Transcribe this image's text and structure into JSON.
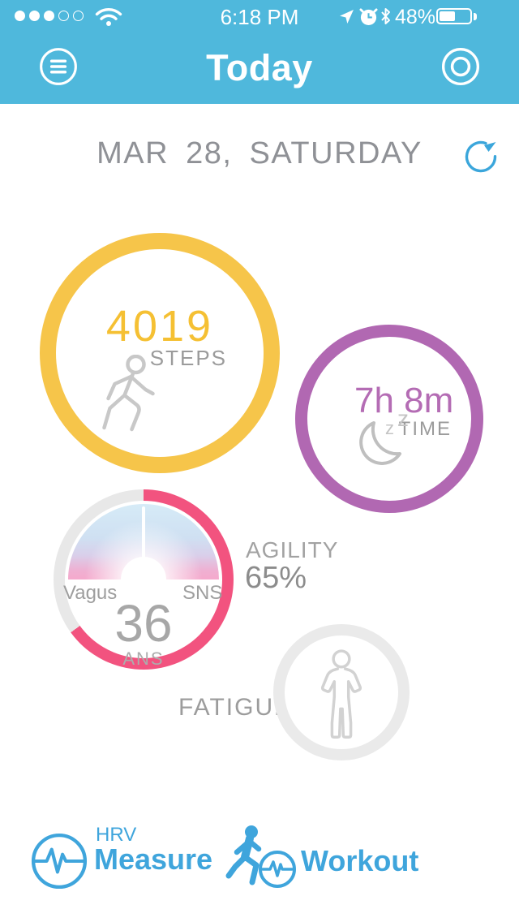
{
  "status_bar": {
    "time": "6:18 PM",
    "battery_percent": "48%",
    "signal_filled": 3,
    "signal_total": 5,
    "icons": [
      "signal-dots",
      "wifi-icon",
      "location-icon",
      "alarm-icon",
      "bluetooth-icon",
      "battery-icon"
    ]
  },
  "header": {
    "title": "Today",
    "left_icon": "menu-icon",
    "right_icon": "record-icon"
  },
  "content": {
    "date": "MAR 28, SATURDAY",
    "refresh_icon": "refresh-icon"
  },
  "cards": {
    "steps": {
      "value": "4019",
      "label": "STEPS",
      "icon": "walking-person-icon"
    },
    "sleep": {
      "value": "7h 8m",
      "label": "TIME",
      "icon": "moon-sleep-icon",
      "zz": [
        "z",
        "z"
      ]
    },
    "ans": {
      "value": "36",
      "label": "ANS",
      "left_label": "Vagus",
      "right_label": "SNS",
      "progress_percent": 65,
      "gauge": "semicircle-gauge-with-needle-pointing-up"
    },
    "agility": {
      "label": "AGILITY",
      "value": "65%"
    },
    "fatigue": {
      "label": "FATIGUE",
      "icon": "standing-person-icon"
    }
  },
  "footer": {
    "hrv": {
      "line1": "HRV",
      "line2": "Measure",
      "icon": "ecg-heartbeat-circle-icon"
    },
    "workout": {
      "label": "Workout",
      "icon": "runner-with-ecg-circle-icon"
    }
  },
  "colors": {
    "header_blue": "#4FB8DC",
    "accent_blue": "#3FA5DC",
    "steps_ring": "#F6C54A",
    "steps_value": "#F5C033",
    "sleep_ring": "#B168B2",
    "sleep_value": "#B46CB4",
    "ans_ring_active": "#F2537F",
    "ans_ring_inactive": "#E8E8E8",
    "fatigue_ring": "#EAEAEA",
    "gray_text": "#9B9B9B"
  }
}
